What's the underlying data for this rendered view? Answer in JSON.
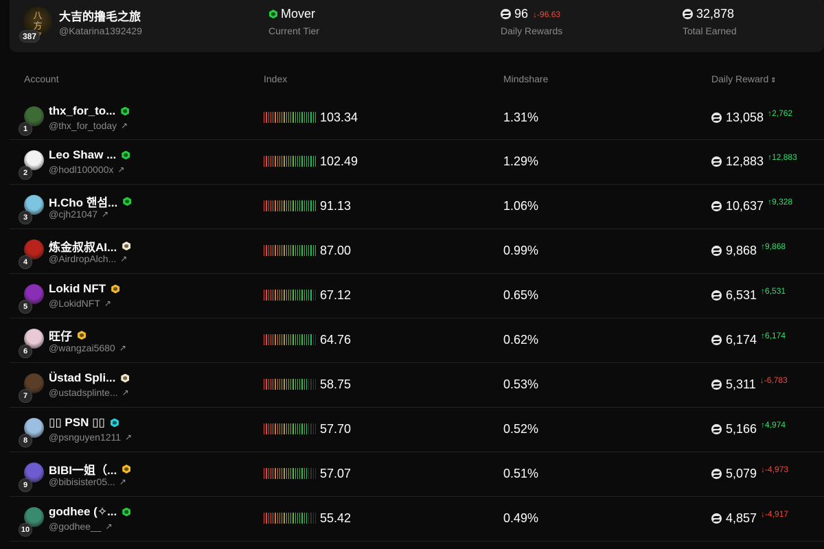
{
  "header": {
    "user": {
      "name": "大吉的撸毛之旅",
      "handle": "@Katarina1392429",
      "rank": "387",
      "avatar_text": "八方来财",
      "avatar_icon": "calligraphy-avatar"
    },
    "tier": {
      "value": "Mover",
      "label": "Current Tier",
      "badge_color": "#27c93f"
    },
    "daily_rewards": {
      "value": "96",
      "delta": "↓-96.63",
      "label": "Daily Rewards"
    },
    "total_earned": {
      "value": "32,878",
      "label": "Total Earned"
    }
  },
  "columns": {
    "account": "Account",
    "index": "Index",
    "mindshare": "Mindshare",
    "daily_reward": "Daily Reward",
    "sort_icon": "⌃⌄"
  },
  "colors": {
    "positive": "#2ee36a",
    "negative": "#f04a3a",
    "badge_green": "#27c93f",
    "badge_cream": "#f3e7c8",
    "badge_gold": "#f2b928",
    "badge_teal": "#29d1d9"
  },
  "rows": [
    {
      "rank": "1",
      "name": "thx_for_to...",
      "handle": "@thx_for_today",
      "badge": "green",
      "index": "103.34",
      "index_score": 1.0,
      "mindshare": "1.31%",
      "reward": "13,058",
      "delta": "↑2,762",
      "delta_dir": "up",
      "avatar_color": "#3d6b35"
    },
    {
      "rank": "2",
      "name": "Leo Shaw ...",
      "handle": "@hodl100000x",
      "badge": "green",
      "index": "102.49",
      "index_score": 1.0,
      "mindshare": "1.29%",
      "reward": "12,883",
      "delta": "↑12,883",
      "delta_dir": "up",
      "avatar_color": "#f2f2f2"
    },
    {
      "rank": "3",
      "name": "H.Cho 핸섬...",
      "handle": "@cjh21047",
      "badge": "green",
      "index": "91.13",
      "index_score": 1.0,
      "mindshare": "1.06%",
      "reward": "10,637",
      "delta": "↑9,328",
      "delta_dir": "up",
      "avatar_color": "#7dc4e0"
    },
    {
      "rank": "4",
      "name": "炼金叔叔AI...",
      "handle": "@AirdropAlch...",
      "badge": "cream",
      "index": "87.00",
      "index_score": 1.0,
      "mindshare": "0.99%",
      "reward": "9,868",
      "delta": "↑9,868",
      "delta_dir": "up",
      "avatar_color": "#b8231c"
    },
    {
      "rank": "5",
      "name": "Lokid NFT",
      "handle": "@LokidNFT",
      "badge": "gold",
      "index": "67.12",
      "index_score": 0.92,
      "mindshare": "0.65%",
      "reward": "6,531",
      "delta": "↑6,531",
      "delta_dir": "up",
      "avatar_color": "#8a2fb5"
    },
    {
      "rank": "6",
      "name": "旺仔",
      "handle": "@wangzai5680",
      "badge": "gold",
      "index": "64.76",
      "index_score": 0.92,
      "mindshare": "0.62%",
      "reward": "6,174",
      "delta": "↑6,174",
      "delta_dir": "up",
      "avatar_color": "#e8c9d6"
    },
    {
      "rank": "7",
      "name": "Üstad Spli...",
      "handle": "@ustadsplinte...",
      "badge": "cream",
      "index": "58.75",
      "index_score": 0.85,
      "mindshare": "0.53%",
      "reward": "5,311",
      "delta": "↓-6,783",
      "delta_dir": "down",
      "avatar_color": "#5a3e28"
    },
    {
      "rank": "8",
      "name": "▯▯ PSN ▯▯",
      "handle": "@psnguyen1211",
      "badge": "teal",
      "index": "57.70",
      "index_score": 0.85,
      "mindshare": "0.52%",
      "reward": "5,166",
      "delta": "↑4,974",
      "delta_dir": "up",
      "avatar_color": "#9bbfe0"
    },
    {
      "rank": "9",
      "name": "BIBI一姐（...",
      "handle": "@bibisister05...",
      "badge": "gold",
      "index": "57.07",
      "index_score": 0.85,
      "mindshare": "0.51%",
      "reward": "5,079",
      "delta": "↓-4,973",
      "delta_dir": "down",
      "avatar_color": "#6d5bd0"
    },
    {
      "rank": "10",
      "name": "godhee (✧...",
      "handle": "@godhee__",
      "badge": "green",
      "index": "55.42",
      "index_score": 0.85,
      "mindshare": "0.49%",
      "reward": "4,857",
      "delta": "↓-4,917",
      "delta_dir": "down",
      "avatar_color": "#3a8a70"
    }
  ]
}
